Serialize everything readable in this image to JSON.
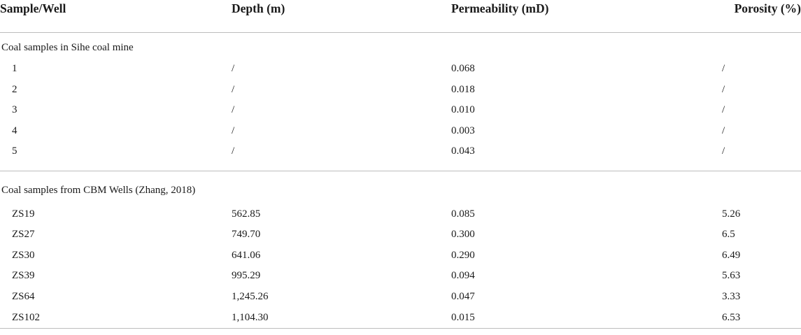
{
  "table": {
    "headers": [
      "Sample/Well",
      "Depth (m)",
      "Permeability (mD)",
      "Porosity (%)"
    ],
    "groups": [
      {
        "title": "Coal samples in Sihe coal mine",
        "rows": [
          [
            "1",
            "/",
            "0.068",
            "/"
          ],
          [
            "2",
            "/",
            "0.018",
            "/"
          ],
          [
            "3",
            "/",
            "0.010",
            "/"
          ],
          [
            "4",
            "/",
            "0.003",
            "/"
          ],
          [
            "5",
            "/",
            "0.043",
            "/"
          ]
        ]
      },
      {
        "title": "Coal samples from CBM Wells (Zhang, 2018)",
        "rows": [
          [
            "ZS19",
            "562.85",
            "0.085",
            "5.26"
          ],
          [
            "ZS27",
            "749.70",
            "0.300",
            "6.5"
          ],
          [
            "ZS30",
            "641.06",
            "0.290",
            "6.49"
          ],
          [
            "ZS39",
            "995.29",
            "0.094",
            "5.63"
          ],
          [
            "ZS64",
            "1,245.26",
            "0.047",
            "3.33"
          ],
          [
            "ZS102",
            "1,104.30",
            "0.015",
            "6.53"
          ]
        ]
      }
    ]
  }
}
